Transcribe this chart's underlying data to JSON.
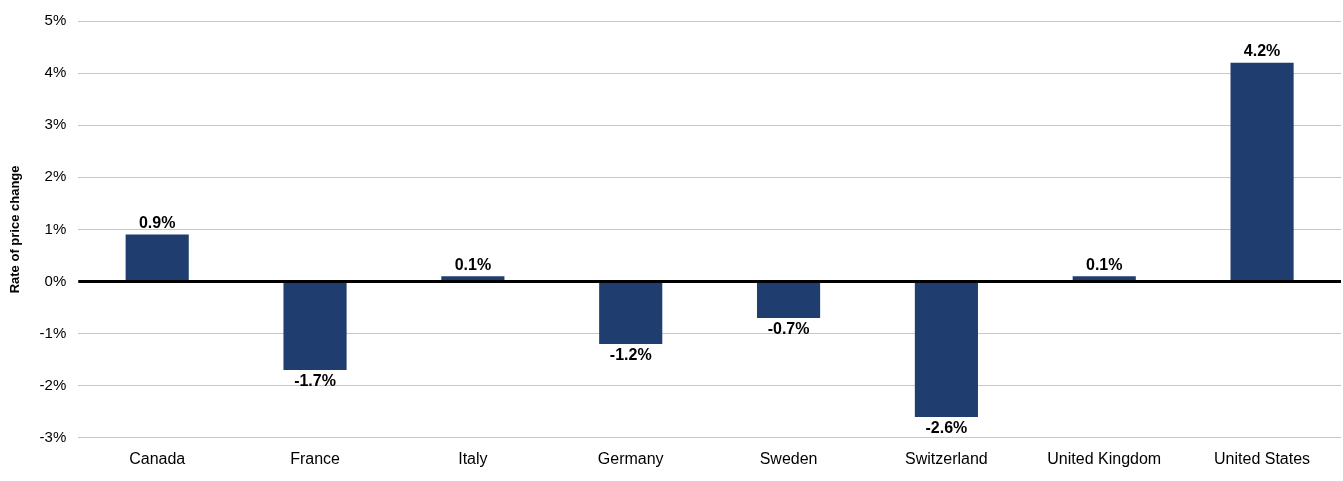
{
  "chart_data": {
    "type": "bar",
    "ylabel": "Rate of price change",
    "categories": [
      "Canada",
      "France",
      "Italy",
      "Germany",
      "Sweden",
      "Switzerland",
      "United Kingdom",
      "United States"
    ],
    "values": [
      0.9,
      -1.7,
      0.1,
      -1.2,
      -0.7,
      -2.6,
      0.1,
      4.2
    ],
    "value_labels": [
      "0.9%",
      "-1.7%",
      "0.1%",
      "-1.2%",
      "-0.7%",
      "-2.6%",
      "0.1%",
      "4.2%"
    ],
    "color": "#1f3d6e",
    "ylim": [
      -3,
      5
    ],
    "yticks": [
      {
        "value": -3,
        "label": "-3%"
      },
      {
        "value": -2,
        "label": "-2%"
      },
      {
        "value": -1,
        "label": "-1%"
      },
      {
        "value": 0,
        "label": "0%"
      },
      {
        "value": 1,
        "label": "1%"
      },
      {
        "value": 2,
        "label": "2%"
      },
      {
        "value": 3,
        "label": "3%"
      },
      {
        "value": 4,
        "label": "4%"
      },
      {
        "value": 5,
        "label": "5%"
      }
    ],
    "grid": "y",
    "legend": false,
    "ref_lines": [
      {
        "axis": "y",
        "value": 0,
        "color": "#000000"
      }
    ]
  }
}
